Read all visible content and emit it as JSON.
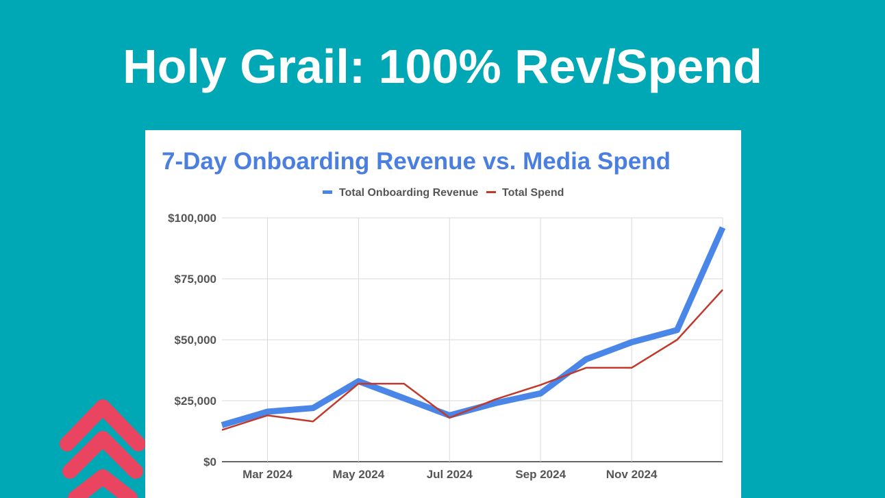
{
  "slide": {
    "title": "Holy Grail: 100% Rev/Spend"
  },
  "colors": {
    "background": "#00A8B5",
    "revenue": "#4A86E8",
    "spend": "#C0392B",
    "chart_title": "#4A7FE0",
    "chevron": "#E94560"
  },
  "chart_data": {
    "type": "line",
    "title": "7-Day Onboarding Revenue vs. Media Spend",
    "x": [
      "2024-02",
      "2024-03",
      "2024-04",
      "2024-05",
      "2024-06",
      "2024-07",
      "2024-08",
      "2024-09",
      "2024-10",
      "2024-11",
      "2024-12",
      "2025-01"
    ],
    "x_tick_labels": [
      "Mar 2024",
      "May 2024",
      "Jul 2024",
      "Sep 2024",
      "Nov 2024"
    ],
    "x_tick_positions": [
      "2024-03",
      "2024-05",
      "2024-07",
      "2024-09",
      "2024-11"
    ],
    "series": [
      {
        "name": "Total Onboarding Revenue",
        "values": [
          15000,
          20500,
          22000,
          33000,
          26000,
          19000,
          24000,
          28000,
          42000,
          49000,
          54000,
          96000
        ]
      },
      {
        "name": "Total Spend",
        "values": [
          13000,
          19000,
          16500,
          32000,
          32000,
          18000,
          25500,
          31500,
          38500,
          38500,
          50000,
          70500
        ]
      }
    ],
    "y_tick_labels": [
      "$0",
      "$25,000",
      "$50,000",
      "$75,000",
      "$100,000"
    ],
    "y_ticks": [
      0,
      25000,
      50000,
      75000,
      100000
    ],
    "ylim": [
      0,
      100000
    ],
    "grid": true,
    "legend_position": "top-center"
  }
}
